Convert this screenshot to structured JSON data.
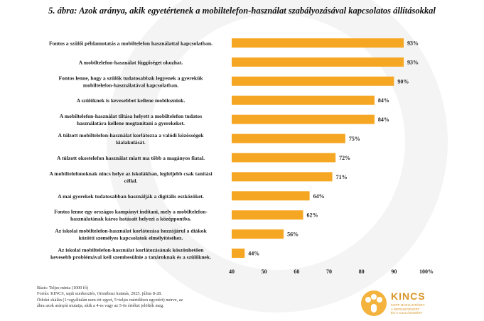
{
  "title": "5. ábra: Azok aránya, akik egyetértenek a mobiltelefon-használat szabályozásával kapcsolatos állításokkal",
  "chart_data": {
    "type": "bar",
    "orientation": "horizontal",
    "title": "5. ábra: Azok aránya, akik egyetértenek a mobiltelefon-használat szabályozásával kapcsolatos állításokkal",
    "categories": [
      [
        "Fontos a szülői példamutatás a mobiltelefon használattal kapcsolatban."
      ],
      [
        "A mobiltelefon-használat függőséget okozhat."
      ],
      [
        "Fontos lenne, hogy a szülők tudatosabbak legyenek  a gyerekük",
        "mobiltelefon-használatával kapcsolatban."
      ],
      [
        "A szülőknek is kevesebbet kellene mobilozniuk."
      ],
      [
        "A mobiltelefon-használat tiltása helyett a mobiltelefon tudatos",
        "használatára kellene megtanítani a gyerekeket."
      ],
      [
        "A túlzott mobiltelefon-használat korlátozza a valódi közösségek",
        "kialakulását."
      ],
      [
        "A túlzott okostelefon használat miatt ma  több a magányos fiatal."
      ],
      [
        "A mobiltelefonoknak nincs helye az iskolákban, legfeljebb csak tanítási",
        "céllal."
      ],
      [
        "A mai gyerekek tudatosabban használják a digitális eszközöket."
      ],
      [
        "Fontos lenne egy országos kampányt indítani, mely a mobiltelefon-",
        "használatának káros hatásait helyezi a középpontba."
      ],
      [
        "Az iskolai mobiltelefon-használat korlátozása hozzájárul a diákok",
        "közötti személyes kapcsolatok elmélyítéséhez."
      ],
      [
        "Az iskolai mobiltelefon-használat korlátozásának köszönhetően",
        "kevesebb problémával kell szembesülnie a tanároknak és a szülőknek."
      ]
    ],
    "values": [
      93,
      93,
      90,
      84,
      84,
      75,
      72,
      71,
      64,
      62,
      56,
      44
    ],
    "value_labels": [
      "93%",
      "93%",
      "90%",
      "84%",
      "84%",
      "75%",
      "72%",
      "71%",
      "64%",
      "62%",
      "56%",
      "44%"
    ],
    "xlim": [
      40,
      100
    ],
    "xticks": [
      "40",
      "50",
      "60",
      "70",
      "80",
      "90",
      "100%"
    ],
    "bar_color": "#f5a623",
    "grid": false,
    "legend": "none"
  },
  "footnotes": [
    "Bázis: Teljes minta (1000 fő)",
    "Forrás: KINCS, saját szerkesztés, Omnibusz kutatás, 2025. július 8-28.",
    "Ötfokú skálán (1=egyáltalán nem ért egyet, 5=teljes mértékben egyetért) mérve, az",
    "ábra azok arányát mutatja, akik a 4-es vagy az 5-ös értéket jelölték meg."
  ],
  "logo": {
    "name": "KINCS",
    "subtitle": [
      "KOPP MÁRIA INTÉZET",
      "A NÉPESEDÉSÉRT",
      "ÉS A CSALÁDOKÉRT"
    ],
    "color": "#d9962a"
  }
}
